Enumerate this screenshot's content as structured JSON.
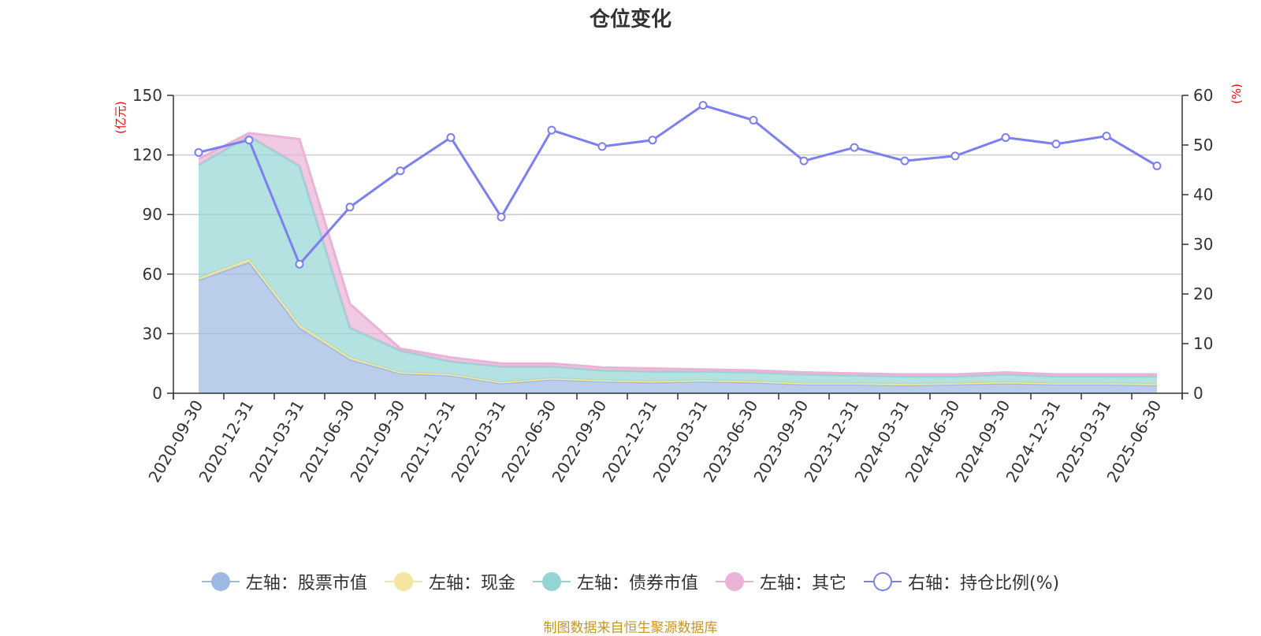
{
  "chart_data": {
    "type": "area",
    "title": "仓位变化",
    "left_axis_unit": "(亿元)",
    "right_axis_unit": "(%)",
    "x": [
      "2020-09-30",
      "2020-12-31",
      "2021-03-31",
      "2021-06-30",
      "2021-09-30",
      "2021-12-31",
      "2022-03-31",
      "2022-06-30",
      "2022-09-30",
      "2022-12-31",
      "2023-03-31",
      "2023-06-30",
      "2023-09-30",
      "2023-12-31",
      "2024-03-31",
      "2024-06-30",
      "2024-09-30",
      "2024-12-31",
      "2025-03-31",
      "2025-06-30"
    ],
    "left_ylim": [
      0,
      150
    ],
    "left_yticks": [
      0,
      30,
      60,
      90,
      120,
      150
    ],
    "right_ylim": [
      0,
      60
    ],
    "right_yticks": [
      0,
      10,
      20,
      30,
      40,
      50,
      60
    ],
    "grid": true,
    "legend_position": "bottom",
    "series": [
      {
        "name": "左轴：股票市值",
        "axis": "left",
        "type": "stacked-area",
        "color": "#9db8e2",
        "values": [
          57,
          66,
          33,
          17,
          10,
          9,
          5,
          7,
          6,
          5.5,
          6,
          5.5,
          4.5,
          4.5,
          4,
          4.5,
          5,
          4.5,
          4.5,
          4
        ]
      },
      {
        "name": "左轴：现金",
        "axis": "left",
        "type": "stacked-area",
        "color": "#f6e5a0",
        "values": [
          1,
          1.5,
          1.5,
          1,
          0.5,
          0.5,
          0.5,
          0.5,
          0.5,
          0.5,
          0.5,
          0.5,
          0.5,
          0.5,
          0.5,
          0.5,
          0.5,
          0.5,
          0.5,
          0.5
        ]
      },
      {
        "name": "左轴：债券市值",
        "axis": "left",
        "type": "stacked-area",
        "color": "#93d5d3",
        "values": [
          57,
          62,
          80,
          15,
          11,
          6.5,
          8,
          6,
          5,
          5,
          4.5,
          4.5,
          4.5,
          4,
          4,
          3.5,
          4,
          3.5,
          3.5,
          4
        ]
      },
      {
        "name": "左轴：其它",
        "axis": "left",
        "type": "stacked-area",
        "color": "#e9b2d6",
        "values": [
          3,
          1.5,
          13.5,
          12,
          1,
          2,
          1.5,
          1.5,
          1.5,
          1.5,
          1,
          1,
          1,
          1,
          1,
          1,
          1,
          1,
          1,
          1
        ]
      },
      {
        "name": "右轴：持仓比例(%)",
        "axis": "right",
        "type": "line",
        "color": "#7b7fef",
        "values": [
          48.5,
          51,
          26,
          37.5,
          44.8,
          51.5,
          35.5,
          53,
          49.7,
          51,
          58,
          55,
          46.8,
          49.5,
          46.8,
          47.8,
          51.5,
          50.2,
          51.8,
          45.8
        ]
      }
    ]
  },
  "footer": "制图数据来自恒生聚源数据库"
}
